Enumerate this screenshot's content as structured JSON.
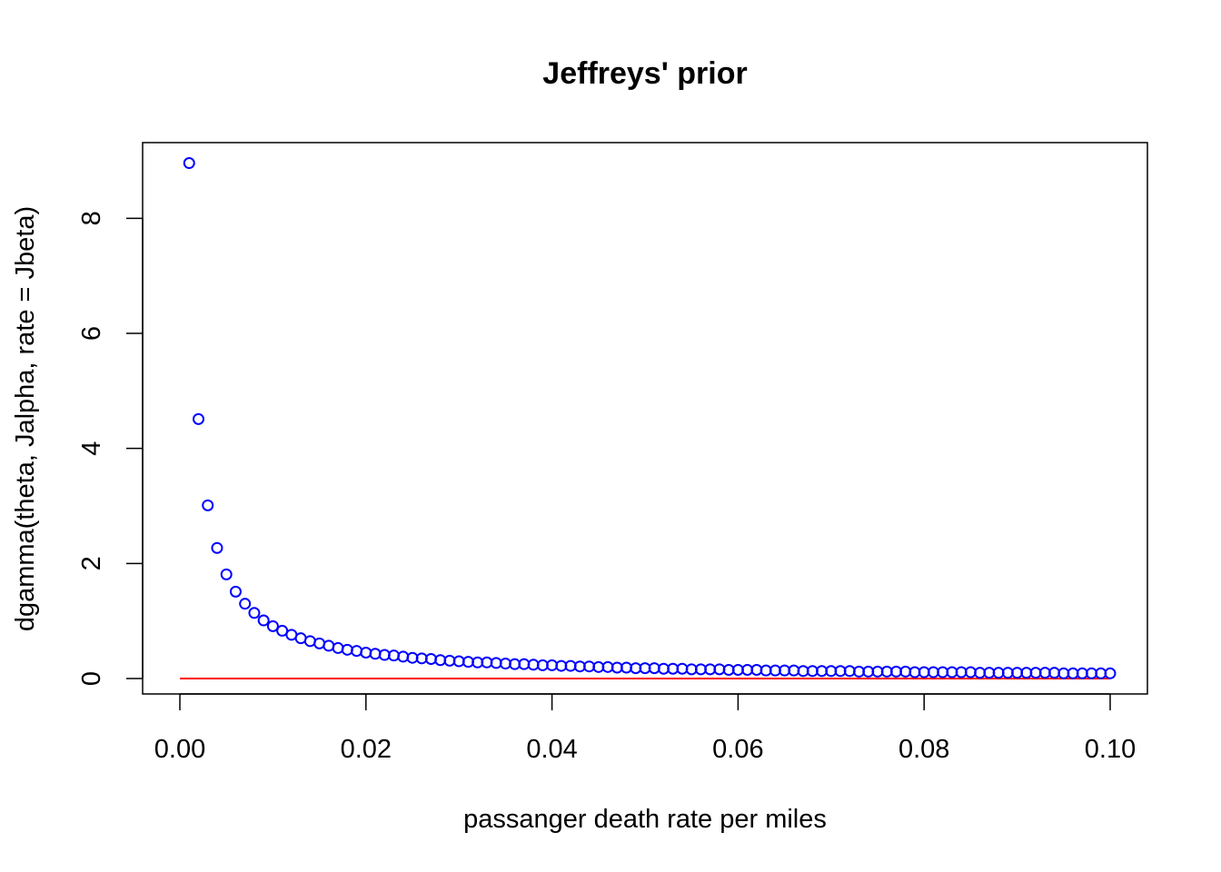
{
  "chart_data": {
    "type": "scatter",
    "title": "Jeffreys' prior",
    "xlabel": "passanger death rate per miles",
    "ylabel": "dgamma(theta, Jalpha, rate = Jbeta)",
    "xlim": [
      0,
      0.1
    ],
    "ylim": [
      0,
      9
    ],
    "xticks": [
      "0.00",
      "0.02",
      "0.04",
      "0.06",
      "0.08",
      "0.10"
    ],
    "xtick_values": [
      0,
      0.02,
      0.04,
      0.06,
      0.08,
      0.1
    ],
    "yticks": [
      "0",
      "2",
      "4",
      "6",
      "8"
    ],
    "ytick_values": [
      0,
      2,
      4,
      6,
      8
    ],
    "grid": false,
    "legend": "none",
    "points_color": "#0000ff",
    "line_color": "#ff0000",
    "series": [
      {
        "marker": "open-circle",
        "x": [
          0.001,
          0.002,
          0.003,
          0.004,
          0.005,
          0.006,
          0.007,
          0.008,
          0.009,
          0.01,
          0.011,
          0.012,
          0.013,
          0.014,
          0.015,
          0.016,
          0.017,
          0.018,
          0.019,
          0.02,
          0.021,
          0.022,
          0.023,
          0.024,
          0.025,
          0.026,
          0.027,
          0.028,
          0.029,
          0.03,
          0.031,
          0.032,
          0.033,
          0.034,
          0.035,
          0.036,
          0.037,
          0.038,
          0.039,
          0.04,
          0.041,
          0.042,
          0.043,
          0.044,
          0.045,
          0.046,
          0.047,
          0.048,
          0.049,
          0.05,
          0.051,
          0.052,
          0.053,
          0.054,
          0.055,
          0.056,
          0.057,
          0.058,
          0.059,
          0.06,
          0.061,
          0.062,
          0.063,
          0.064,
          0.065,
          0.066,
          0.067,
          0.068,
          0.069,
          0.07,
          0.071,
          0.072,
          0.073,
          0.074,
          0.075,
          0.076,
          0.077,
          0.078,
          0.079,
          0.08,
          0.081,
          0.082,
          0.083,
          0.084,
          0.085,
          0.086,
          0.087,
          0.088,
          0.089,
          0.09,
          0.091,
          0.092,
          0.093,
          0.094,
          0.095,
          0.096,
          0.097,
          0.098,
          0.099,
          0.1
        ],
        "y": [
          8.96,
          4.51,
          3.01,
          2.27,
          1.81,
          1.51,
          1.3,
          1.14,
          1.01,
          0.91,
          0.83,
          0.76,
          0.7,
          0.65,
          0.61,
          0.57,
          0.53,
          0.5,
          0.48,
          0.45,
          0.43,
          0.41,
          0.4,
          0.38,
          0.36,
          0.35,
          0.34,
          0.32,
          0.31,
          0.3,
          0.29,
          0.28,
          0.28,
          0.27,
          0.26,
          0.25,
          0.25,
          0.24,
          0.23,
          0.23,
          0.22,
          0.22,
          0.21,
          0.21,
          0.2,
          0.2,
          0.19,
          0.19,
          0.18,
          0.18,
          0.18,
          0.17,
          0.17,
          0.17,
          0.16,
          0.16,
          0.16,
          0.16,
          0.15,
          0.15,
          0.15,
          0.15,
          0.14,
          0.14,
          0.14,
          0.14,
          0.13,
          0.13,
          0.13,
          0.13,
          0.13,
          0.13,
          0.12,
          0.12,
          0.12,
          0.12,
          0.12,
          0.12,
          0.11,
          0.11,
          0.11,
          0.11,
          0.11,
          0.11,
          0.11,
          0.1,
          0.1,
          0.1,
          0.1,
          0.1,
          0.1,
          0.1,
          0.1,
          0.1,
          0.09,
          0.09,
          0.09,
          0.09,
          0.09,
          0.09
        ]
      },
      {
        "marker": "line",
        "x": [
          0,
          0.1
        ],
        "y": [
          0,
          0
        ]
      }
    ]
  }
}
